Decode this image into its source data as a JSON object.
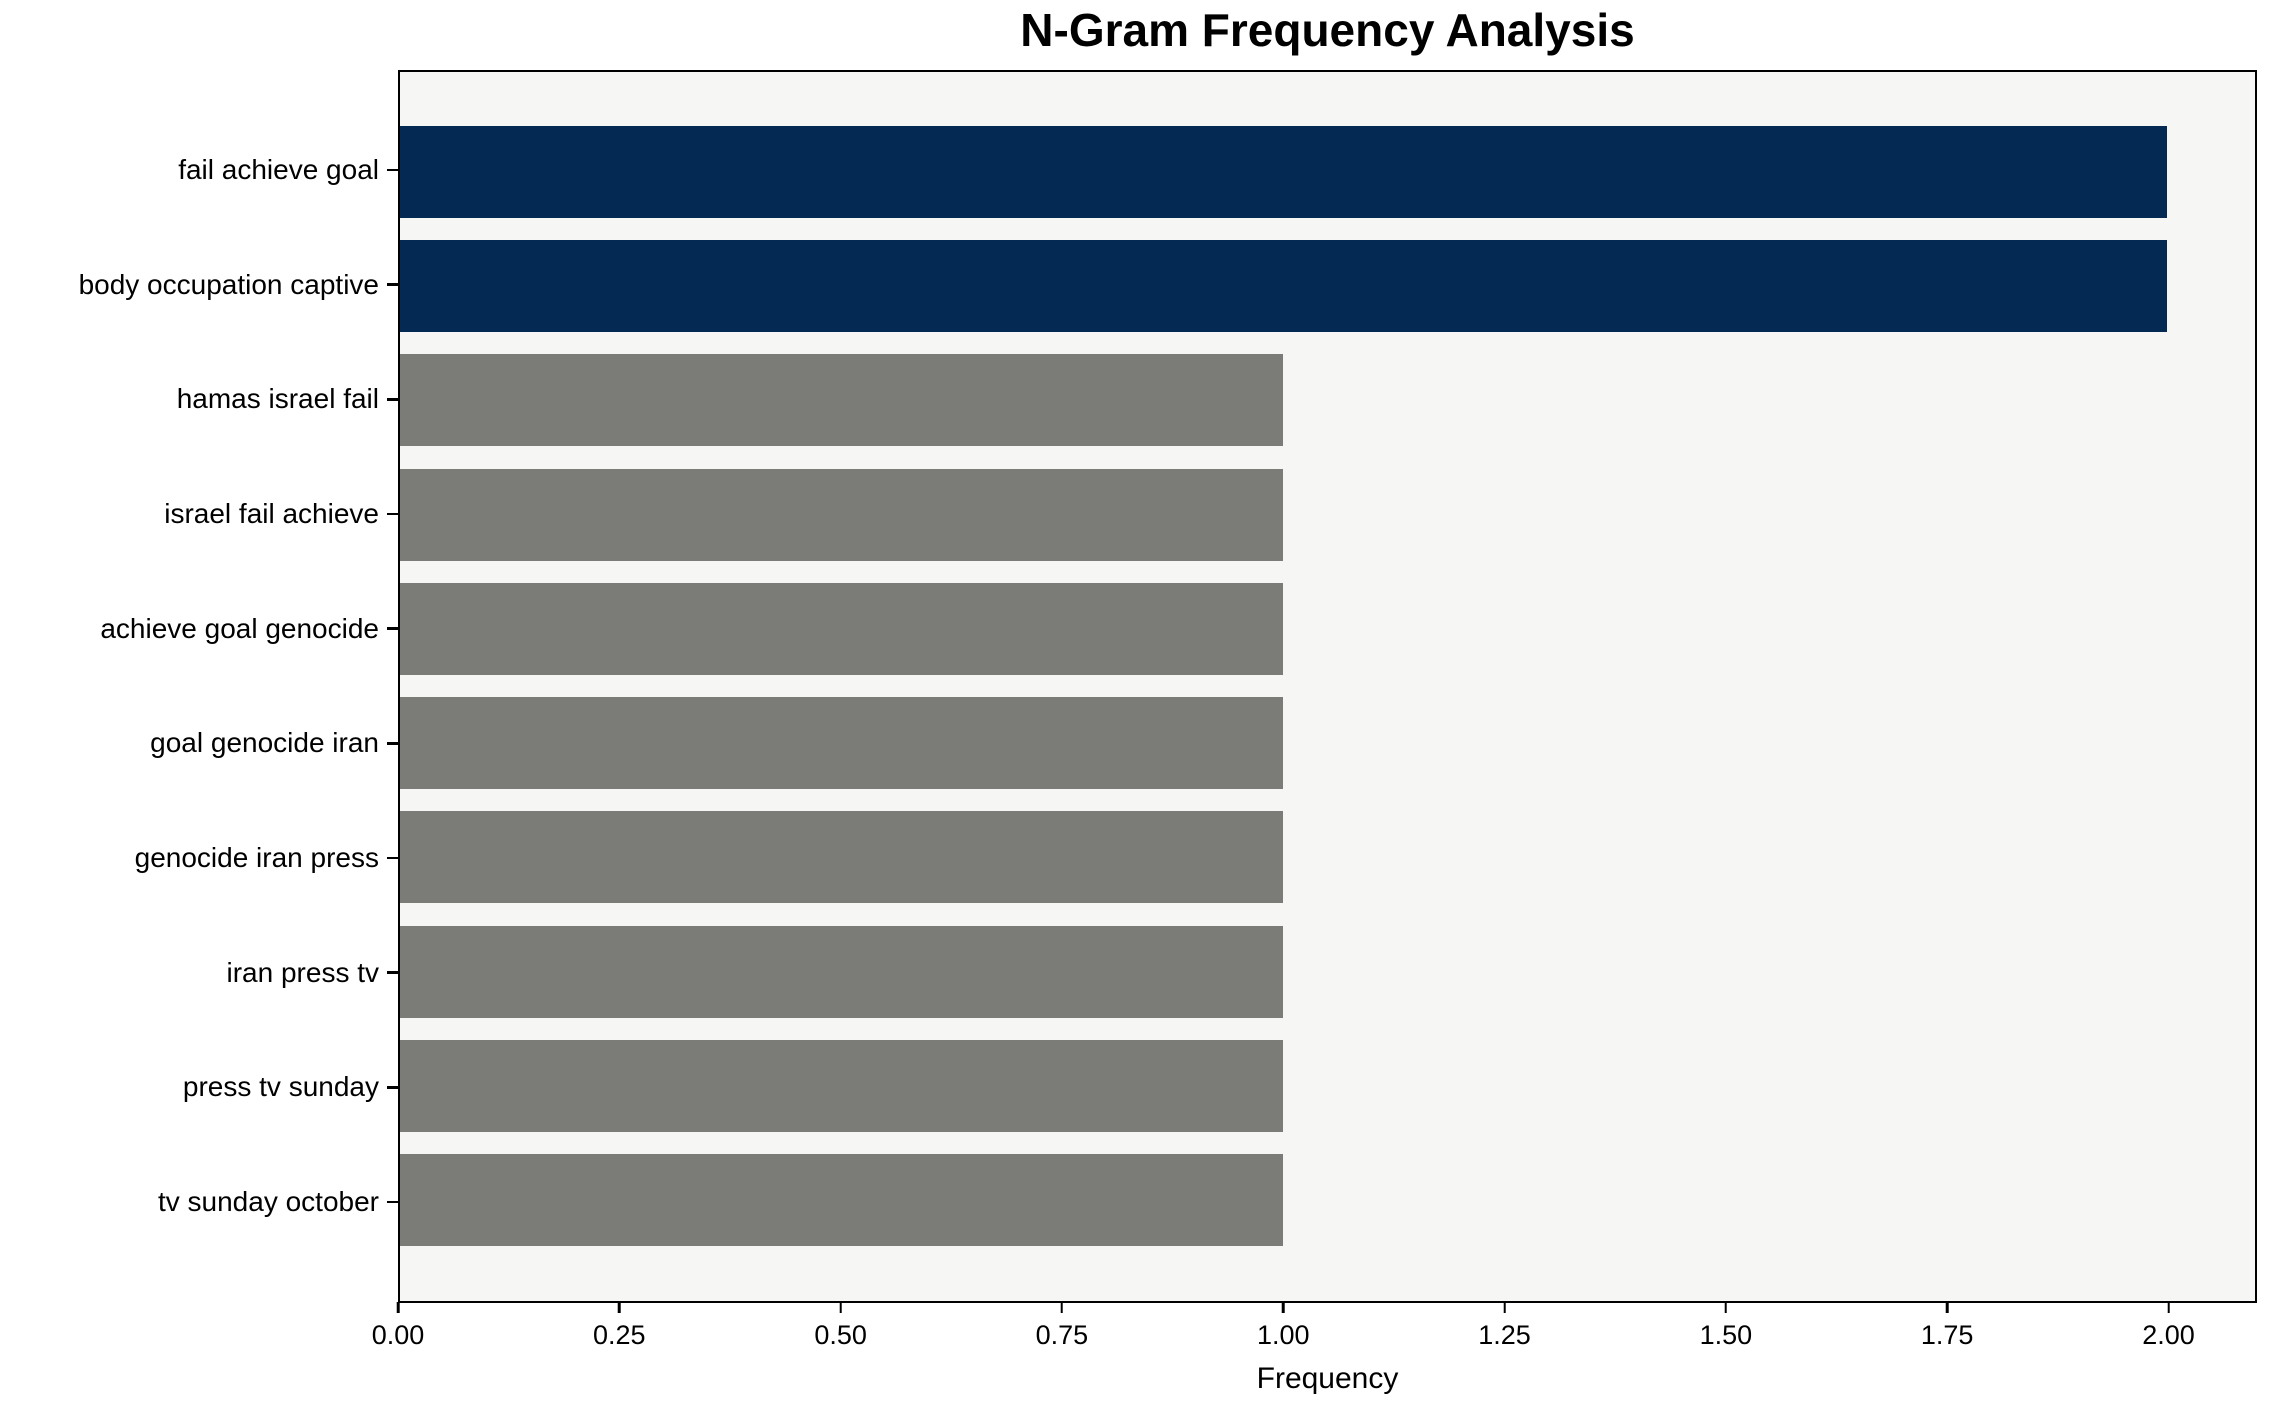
{
  "chart_data": {
    "type": "bar",
    "orientation": "horizontal",
    "title": "N-Gram Frequency Analysis",
    "xlabel": "Frequency",
    "ylabel": "",
    "categories": [
      "fail achieve goal",
      "body occupation captive",
      "hamas israel fail",
      "israel fail achieve",
      "achieve goal genocide",
      "goal genocide iran",
      "genocide iran press",
      "iran press tv",
      "press tv sunday",
      "tv sunday october"
    ],
    "values": [
      2,
      2,
      1,
      1,
      1,
      1,
      1,
      1,
      1,
      1
    ],
    "bar_colors": [
      "#042a54",
      "#042a54",
      "#7b7b78",
      "#7b7b78",
      "#7b7b78",
      "#7b7b78",
      "#7b7b78",
      "#7b7b78",
      "#7b7b78",
      "#7b7b78"
    ],
    "xlim": [
      0,
      2.1
    ],
    "xticks": [
      {
        "value": 0.0,
        "label": "0.00"
      },
      {
        "value": 0.25,
        "label": "0.25"
      },
      {
        "value": 0.5,
        "label": "0.50"
      },
      {
        "value": 0.75,
        "label": "0.75"
      },
      {
        "value": 1.0,
        "label": "1.00"
      },
      {
        "value": 1.25,
        "label": "1.25"
      },
      {
        "value": 1.5,
        "label": "1.50"
      },
      {
        "value": 1.75,
        "label": "1.75"
      },
      {
        "value": 2.0,
        "label": "2.00"
      }
    ],
    "grid": false,
    "legend": null,
    "colors": {
      "highlight_bar": "#042a54",
      "base_bar": "#7b7b78",
      "plot_background": "#f6f6f5",
      "figure_background": "#ffffff",
      "spine": "#000000",
      "text": "#000000"
    }
  }
}
